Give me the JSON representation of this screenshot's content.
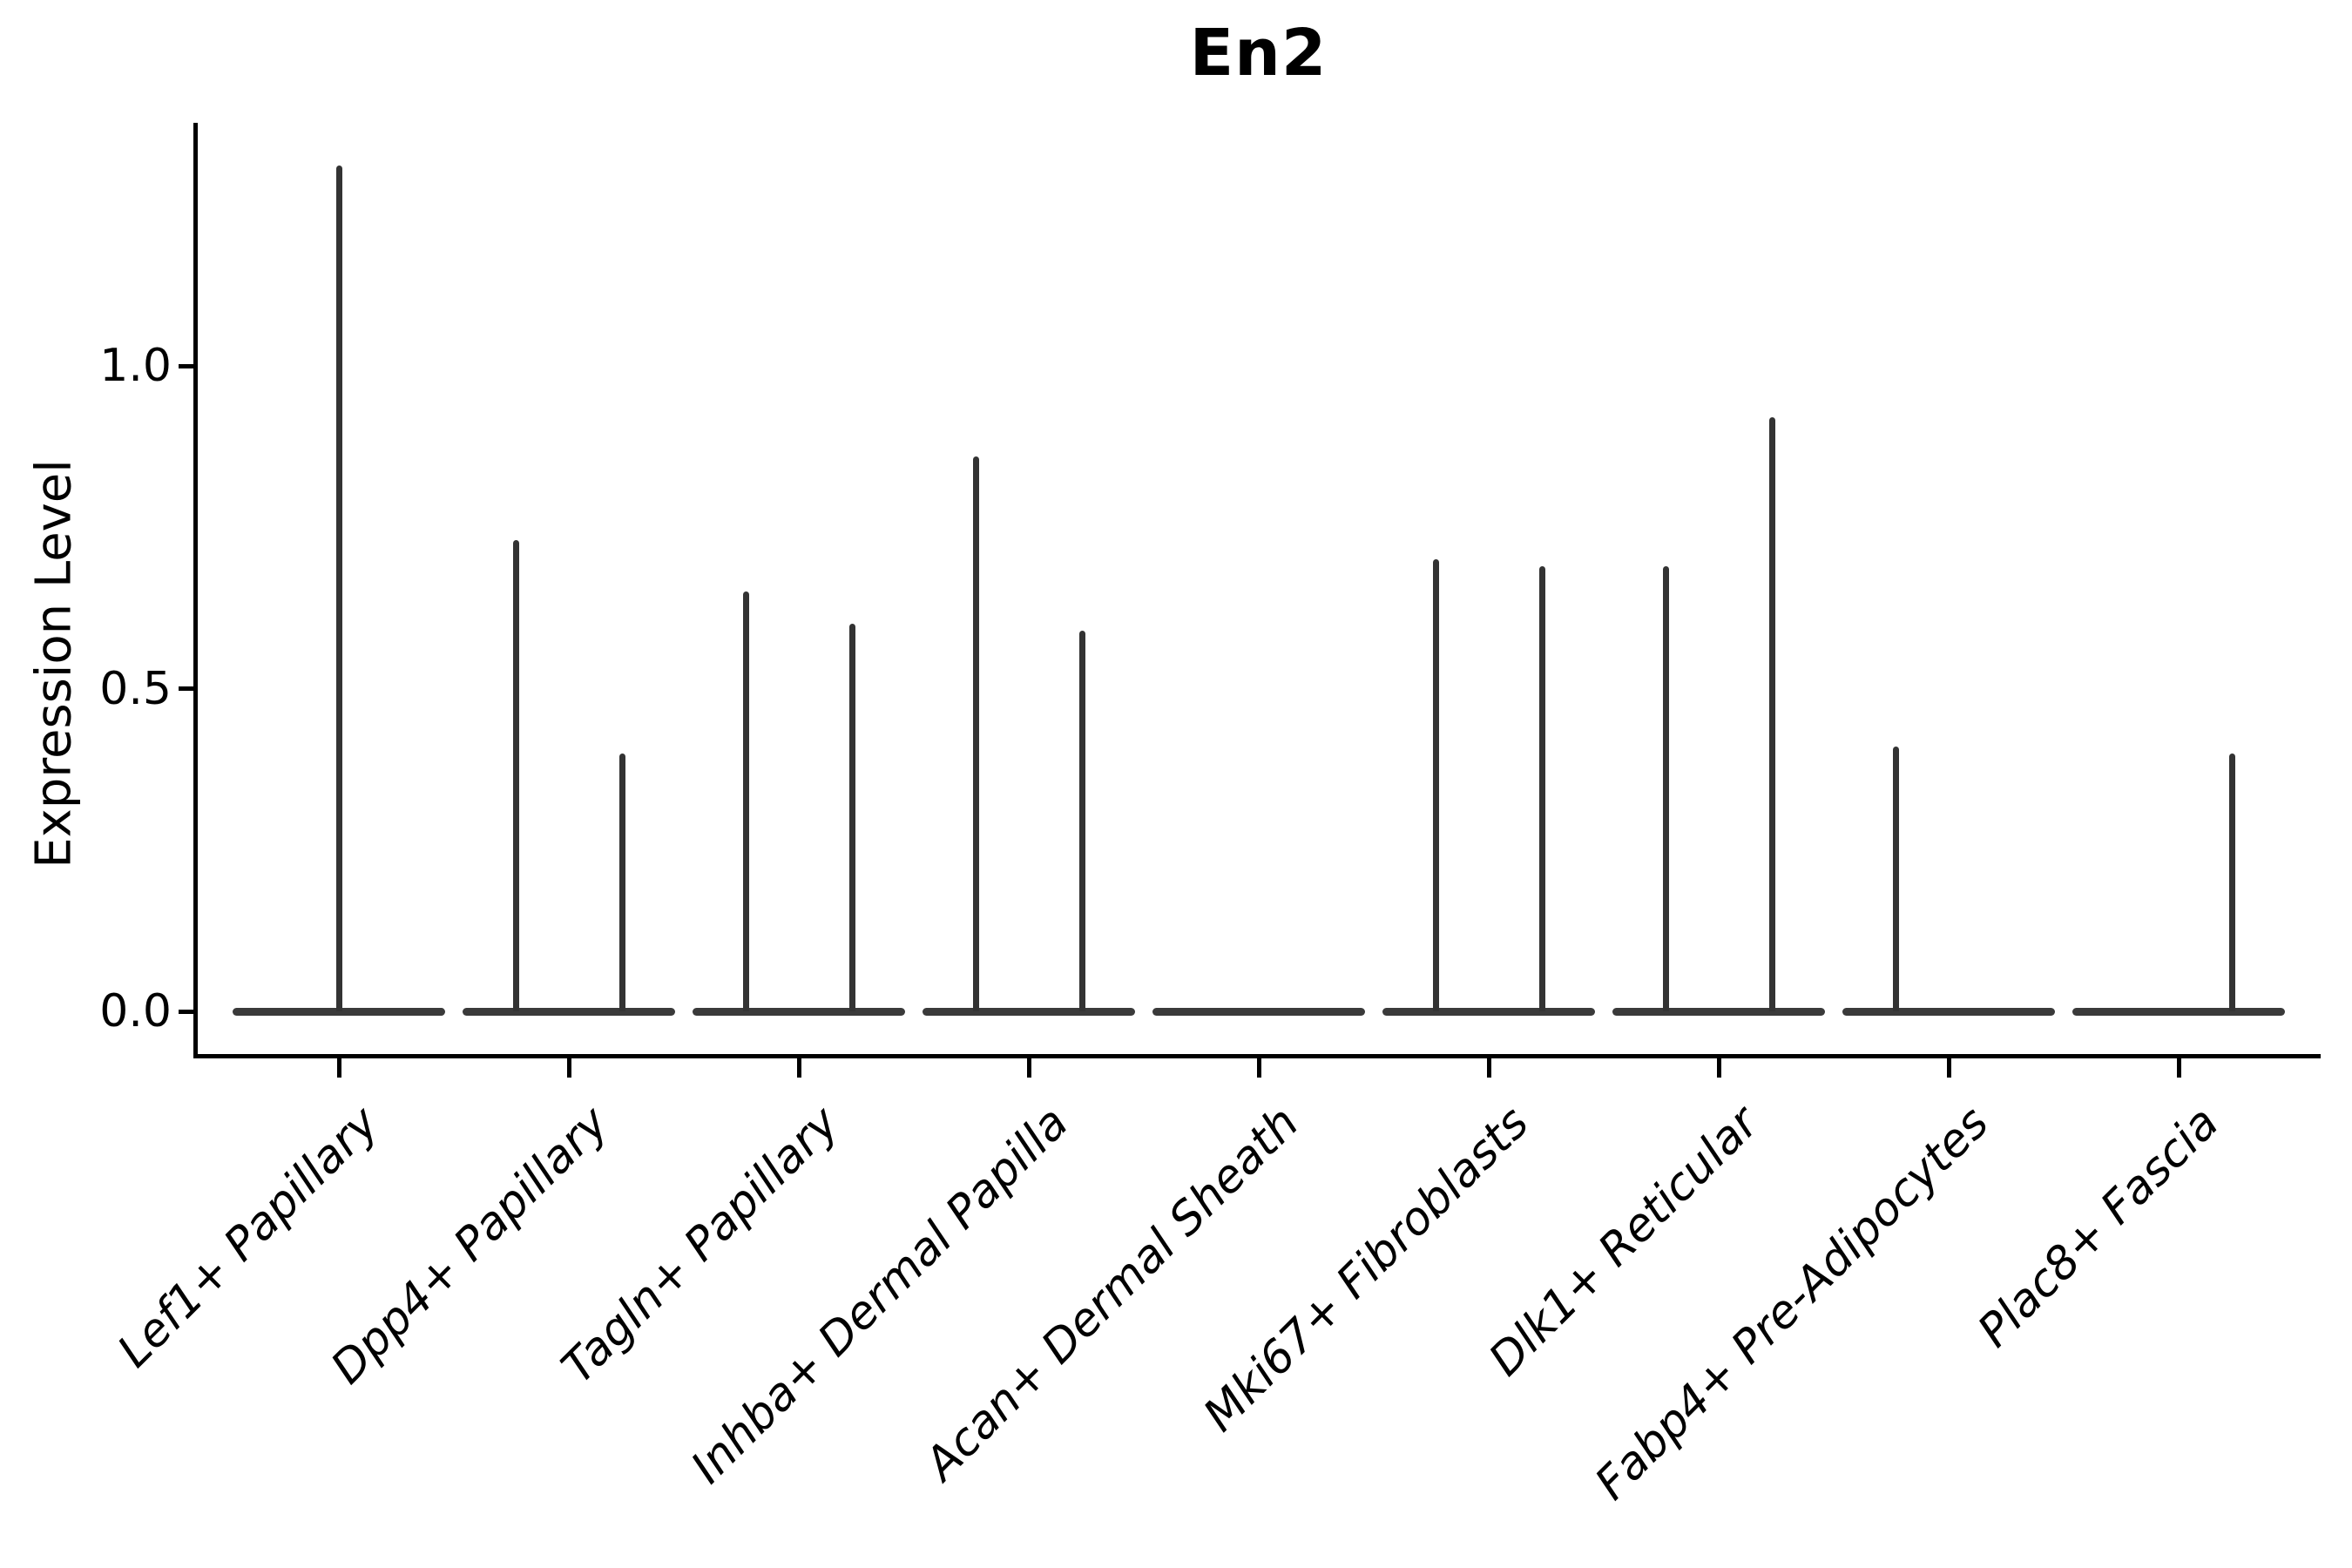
{
  "chart_data": {
    "type": "violin",
    "title": "En2",
    "ylabel": "Expression Level",
    "xlabel": "",
    "grid": false,
    "legend_position": "none",
    "ylim": [
      -0.07,
      1.38
    ],
    "yticks": [
      {
        "value": 0.0,
        "label": "0.0"
      },
      {
        "value": 0.5,
        "label": "0.5"
      },
      {
        "value": 1.0,
        "label": "1.0"
      }
    ],
    "axis_color": "#000000",
    "violin_color": "#3a3a3a",
    "spike_color": "#333333",
    "description": "Violin plot of En2 expression; each category shows flat violins at 0 with thin density spikes up to the listed peak expression value (null = no spike).",
    "categories": [
      {
        "label": "Lef1+ Papillary",
        "violins": [
          {
            "align": "full",
            "peak": 1.31
          }
        ]
      },
      {
        "label": "Dpp4+ Papillary",
        "violins": [
          {
            "align": "left",
            "peak": 0.73
          },
          {
            "align": "right",
            "peak": 0.4
          }
        ]
      },
      {
        "label": "Tagln+ Papillary",
        "violins": [
          {
            "align": "left",
            "peak": 0.65
          },
          {
            "align": "right",
            "peak": 0.6
          }
        ]
      },
      {
        "label": "Inhba+ Dermal Papilla",
        "violins": [
          {
            "align": "left",
            "peak": 0.86
          },
          {
            "align": "right",
            "peak": 0.59
          }
        ]
      },
      {
        "label": "Acan+ Dermal Sheath",
        "violins": [
          {
            "align": "left",
            "peak": null
          },
          {
            "align": "right",
            "peak": null
          }
        ]
      },
      {
        "label": "Mki67+ Fibroblasts",
        "violins": [
          {
            "align": "left",
            "peak": 0.7
          },
          {
            "align": "right",
            "peak": 0.69
          }
        ]
      },
      {
        "label": "Dlk1+ Reticular",
        "violins": [
          {
            "align": "left",
            "peak": 0.69
          },
          {
            "align": "right",
            "peak": 0.92
          }
        ]
      },
      {
        "label": "Fabp4+ Pre-Adipocytes",
        "violins": [
          {
            "align": "left",
            "peak": 0.41
          },
          {
            "align": "right",
            "peak": null
          }
        ]
      },
      {
        "label": "Plac8+ Fascia",
        "violins": [
          {
            "align": "left",
            "peak": null
          },
          {
            "align": "right",
            "peak": 0.4
          }
        ]
      }
    ]
  }
}
